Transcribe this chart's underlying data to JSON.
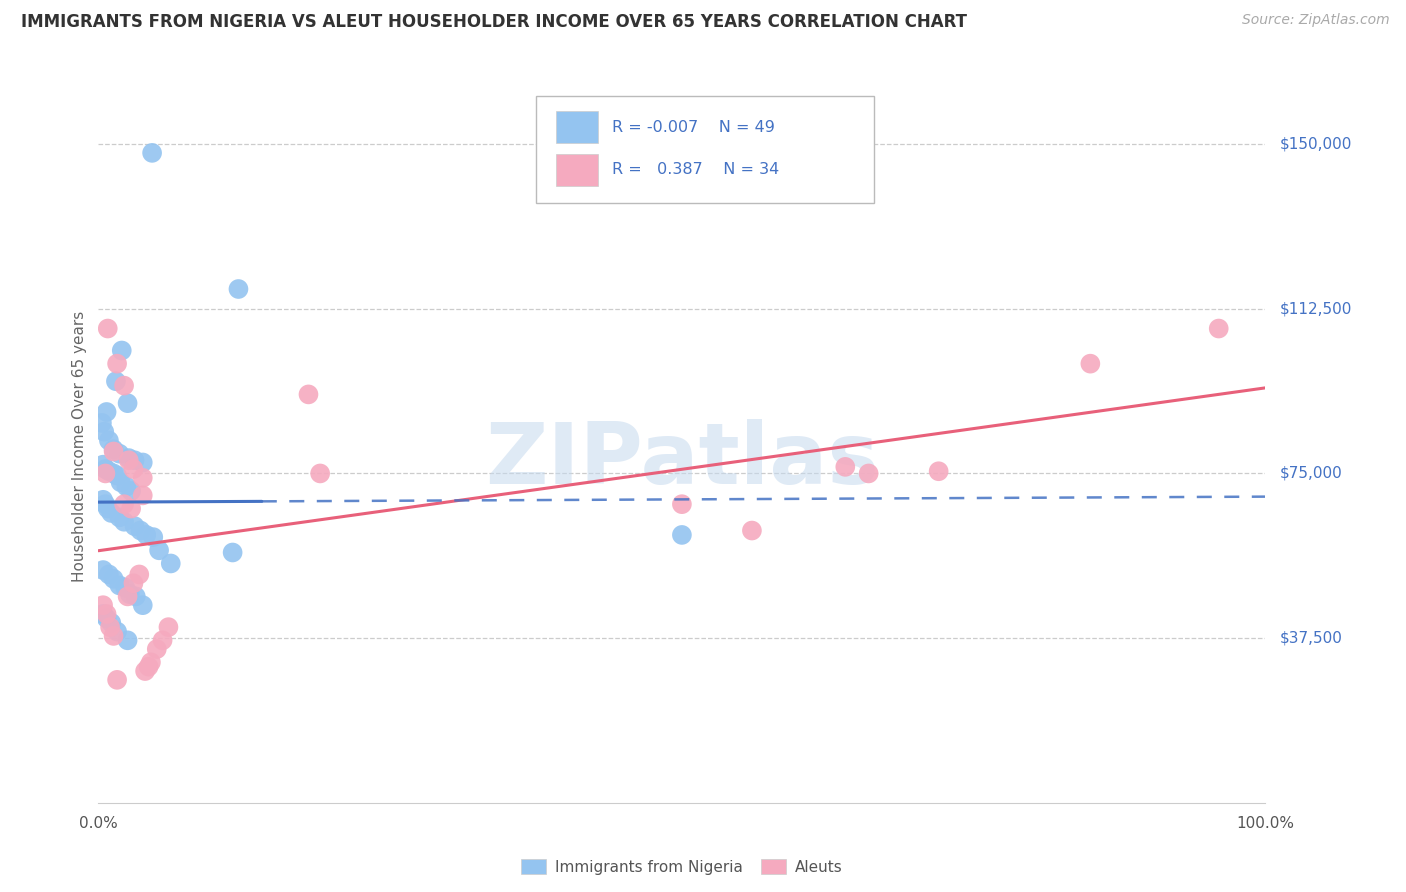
{
  "title": "IMMIGRANTS FROM NIGERIA VS ALEUT HOUSEHOLDER INCOME OVER 65 YEARS CORRELATION CHART",
  "source": "Source: ZipAtlas.com",
  "ylabel": "Householder Income Over 65 years",
  "legend_label1": "Immigrants from Nigeria",
  "legend_label2": "Aleuts",
  "R1": "-0.007",
  "N1": "49",
  "R2": "0.387",
  "N2": "34",
  "ytick_labels": [
    "$37,500",
    "$75,000",
    "$112,500",
    "$150,000"
  ],
  "ytick_values": [
    37500,
    75000,
    112500,
    150000
  ],
  "ymin": 0,
  "ymax": 162500,
  "xmin": 0.0,
  "xmax": 1.0,
  "color_nigeria": "#94C4F0",
  "color_aleut": "#F5AABF",
  "color_nigeria_line": "#4472C4",
  "color_aleut_line": "#E8607A",
  "watermark_color": "#C5D9EE",
  "nigeria_x": [
    0.046,
    0.12,
    0.02,
    0.015,
    0.025,
    0.007,
    0.003,
    0.005,
    0.009,
    0.013,
    0.018,
    0.026,
    0.031,
    0.038,
    0.004,
    0.006,
    0.009,
    0.013,
    0.016,
    0.019,
    0.024,
    0.028,
    0.004,
    0.006,
    0.008,
    0.011,
    0.018,
    0.022,
    0.031,
    0.036,
    0.041,
    0.047,
    0.052,
    0.062,
    0.115,
    0.004,
    0.009,
    0.013,
    0.018,
    0.023,
    0.027,
    0.032,
    0.038,
    0.004,
    0.007,
    0.011,
    0.016,
    0.025,
    0.5
  ],
  "nigeria_y": [
    148000,
    117000,
    103000,
    96000,
    91000,
    89000,
    86500,
    84500,
    82500,
    80500,
    79500,
    78500,
    78000,
    77500,
    77000,
    76000,
    75500,
    75000,
    74500,
    73000,
    72000,
    71000,
    69000,
    68000,
    67000,
    66000,
    65000,
    64000,
    63000,
    62000,
    61000,
    60500,
    57500,
    54500,
    57000,
    53000,
    52000,
    51000,
    49500,
    49000,
    47500,
    47000,
    45000,
    43000,
    42000,
    41000,
    39000,
    37000,
    61000
  ],
  "aleut_x": [
    0.008,
    0.016,
    0.022,
    0.013,
    0.026,
    0.03,
    0.006,
    0.038,
    0.18,
    0.19,
    0.5,
    0.56,
    0.64,
    0.66,
    0.72,
    0.85,
    0.96,
    0.022,
    0.028,
    0.038,
    0.043,
    0.016,
    0.013,
    0.01,
    0.007,
    0.004,
    0.025,
    0.03,
    0.035,
    0.04,
    0.045,
    0.05,
    0.055,
    0.06
  ],
  "aleut_y": [
    108000,
    100000,
    95000,
    80000,
    78000,
    76000,
    75000,
    74000,
    93000,
    75000,
    68000,
    62000,
    76500,
    75000,
    75500,
    100000,
    108000,
    68000,
    67000,
    70000,
    31000,
    28000,
    38000,
    40000,
    43000,
    45000,
    47000,
    50000,
    52000,
    30000,
    32000,
    35000,
    37000,
    40000
  ]
}
